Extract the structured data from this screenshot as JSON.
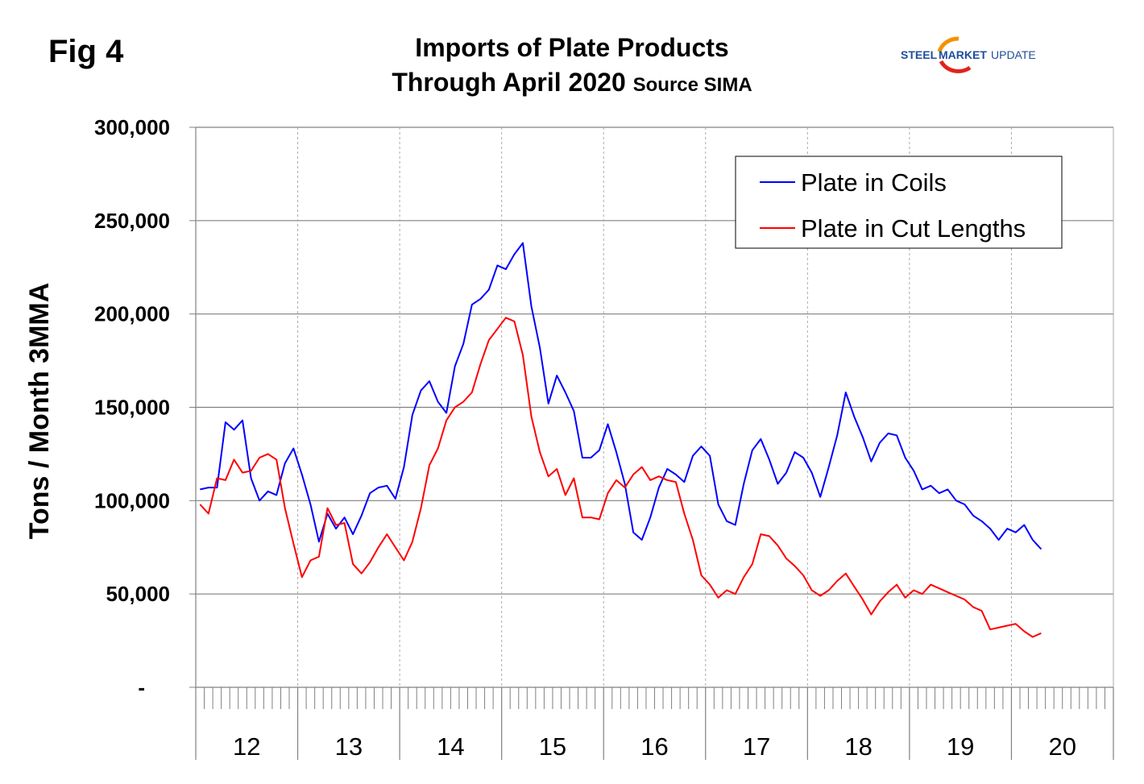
{
  "figure_label": "Fig 4",
  "logo_text": "STEEL MARKET UPDATE",
  "chart_data": {
    "type": "line",
    "title_line1": "Imports of Plate Products",
    "title_line2": "Through April 2020",
    "source": "Source SIMA",
    "ylabel": "Tons / Month 3MMA",
    "xlabel": "",
    "ylim": [
      0,
      300000
    ],
    "yticks": [
      0,
      50000,
      100000,
      150000,
      200000,
      250000,
      300000
    ],
    "ytick_labels": [
      "-",
      "50,000",
      "100,000",
      "150,000",
      "200,000",
      "250,000",
      "300,000"
    ],
    "x_start": "2012-01",
    "x_end": "2020-04",
    "x_frequency": "monthly",
    "year_labels": [
      "12",
      "13",
      "14",
      "15",
      "16",
      "17",
      "18",
      "19",
      "20"
    ],
    "grid": "horizontal solid, vertical dotted at year boundaries",
    "legend_position": "top-right",
    "series": [
      {
        "name": "Plate in Coils",
        "color": "#0000ff",
        "values": [
          106000,
          107000,
          107000,
          142000,
          138000,
          143000,
          112000,
          100000,
          105000,
          103000,
          120000,
          128000,
          114000,
          98000,
          78000,
          93000,
          85000,
          91000,
          82000,
          92000,
          104000,
          107000,
          108000,
          101000,
          118000,
          146000,
          159000,
          164000,
          153000,
          147000,
          172000,
          184000,
          205000,
          208000,
          213000,
          226000,
          224000,
          232000,
          238000,
          204000,
          182000,
          152000,
          167000,
          158000,
          148000,
          123000,
          123000,
          127000,
          141000,
          126000,
          109000,
          83000,
          79000,
          91000,
          107000,
          117000,
          114000,
          110000,
          124000,
          129000,
          124000,
          98000,
          89000,
          87000,
          109000,
          127000,
          133000,
          122000,
          109000,
          115000,
          126000,
          123000,
          115000,
          102000,
          118000,
          135000,
          158000,
          145000,
          134000,
          121000,
          131000,
          136000,
          135000,
          123000,
          116000,
          106000,
          108000,
          104000,
          106000,
          100000,
          98000,
          92000,
          89000,
          85000,
          79000,
          85000,
          83000,
          87000,
          79000,
          74000
        ]
      },
      {
        "name": "Plate in Cut Lengths",
        "color": "#ff0000",
        "values": [
          98000,
          93000,
          112000,
          111000,
          122000,
          115000,
          116000,
          123000,
          125000,
          122000,
          96000,
          77000,
          59000,
          68000,
          70000,
          96000,
          87000,
          88000,
          66000,
          61000,
          67000,
          75000,
          82000,
          75000,
          68000,
          78000,
          96000,
          119000,
          128000,
          143000,
          150000,
          153000,
          158000,
          173000,
          186000,
          192000,
          198000,
          196000,
          178000,
          145000,
          126000,
          113000,
          117000,
          103000,
          112000,
          91000,
          91000,
          90000,
          104000,
          111000,
          107000,
          114000,
          118000,
          111000,
          113000,
          111000,
          110000,
          93000,
          79000,
          60000,
          55000,
          48000,
          52000,
          50000,
          59000,
          66000,
          82000,
          81000,
          76000,
          69000,
          65000,
          60000,
          52000,
          49000,
          52000,
          57000,
          61000,
          54000,
          47000,
          39000,
          46000,
          51000,
          55000,
          48000,
          52000,
          50000,
          55000,
          53000,
          51000,
          49000,
          47000,
          43000,
          41000,
          31000,
          32000,
          33000,
          34000,
          30000,
          27000,
          29000
        ]
      }
    ]
  }
}
